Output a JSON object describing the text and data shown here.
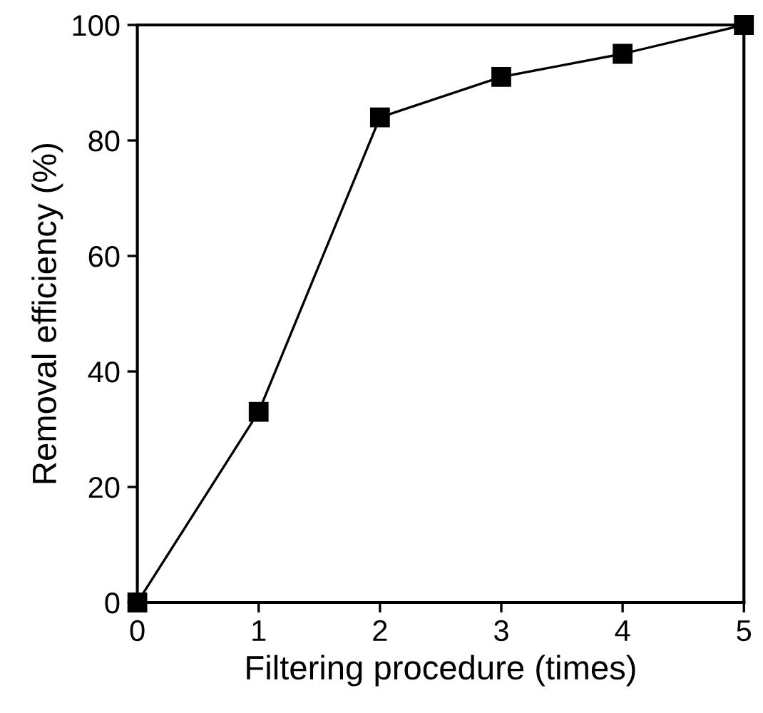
{
  "chart_data": {
    "type": "line",
    "xlabel": "Filtering procedure (times)",
    "ylabel": "Removal efficiency (%)",
    "x": [
      0,
      1,
      2,
      3,
      4,
      5
    ],
    "series": [
      {
        "color": "#000000",
        "values": [
          0,
          33,
          84,
          91,
          95,
          100
        ]
      }
    ],
    "xlim": [
      0,
      5
    ],
    "ylim": [
      0,
      100
    ],
    "xticks": [
      0,
      1,
      2,
      3,
      4,
      5
    ],
    "yticks": [
      0,
      20,
      40,
      60,
      80,
      100
    ],
    "grid": false,
    "legend": false,
    "marker": "square",
    "line_style": "solid"
  }
}
